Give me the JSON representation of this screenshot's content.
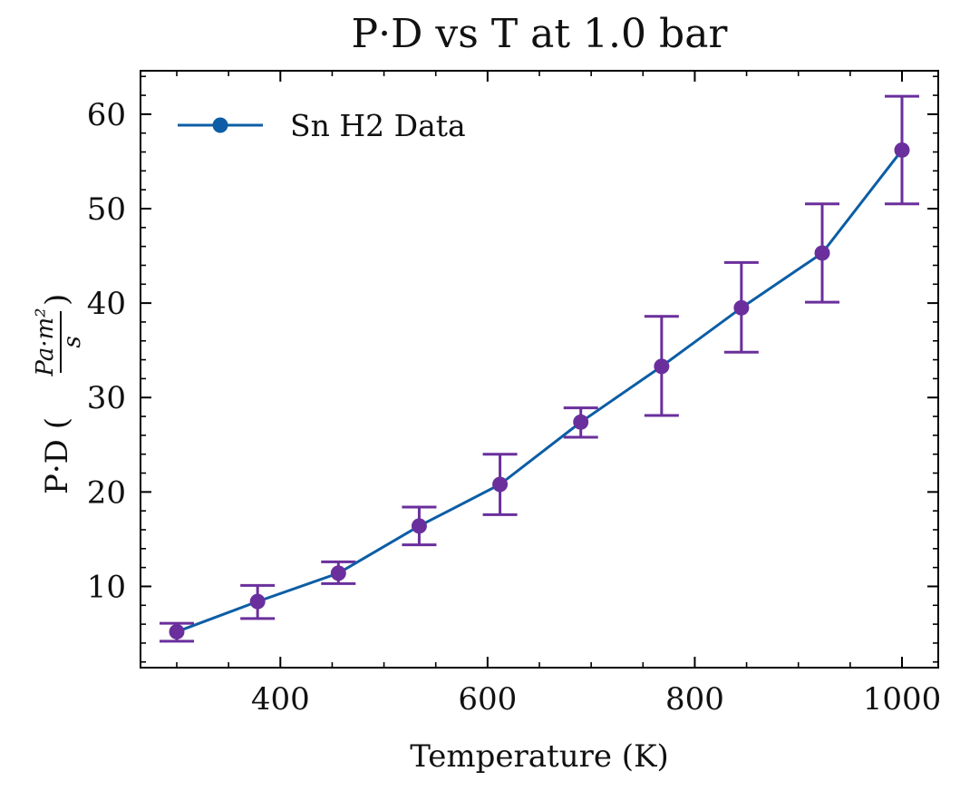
{
  "chart_data": {
    "type": "line",
    "title": "P·D vs T at 1.0 bar",
    "xlabel": "Temperature (K)",
    "ylabel": {
      "prefix": "P·D (",
      "numerator": "Pa·m²",
      "denominator": "s",
      "suffix": ")"
    },
    "xlim": [
      265,
      1035
    ],
    "ylim": [
      1.4,
      64.6
    ],
    "x_ticks": [
      400,
      600,
      800,
      1000
    ],
    "y_ticks": [
      10,
      20,
      30,
      40,
      50,
      60
    ],
    "grid": false,
    "legend": {
      "position": "top-left",
      "entries": [
        "Sn H2 Data"
      ]
    },
    "series": [
      {
        "name": "Sn H2 Data",
        "x": [
          300,
          378,
          456,
          534,
          612,
          690,
          768,
          845,
          923,
          1000
        ],
        "y": [
          5.2,
          8.4,
          11.4,
          16.4,
          20.8,
          27.4,
          33.3,
          39.5,
          45.3,
          56.2
        ],
        "err_low": [
          4.2,
          6.6,
          10.3,
          14.4,
          17.6,
          25.8,
          28.1,
          34.8,
          40.1,
          50.5
        ],
        "err_high": [
          6.1,
          10.1,
          12.6,
          18.4,
          24.0,
          28.9,
          38.6,
          44.3,
          50.5,
          61.9
        ]
      }
    ],
    "colors": {
      "line": "#0c5da5",
      "marker": "#6a2f9c",
      "errorbar": "#6a2f9c"
    }
  }
}
